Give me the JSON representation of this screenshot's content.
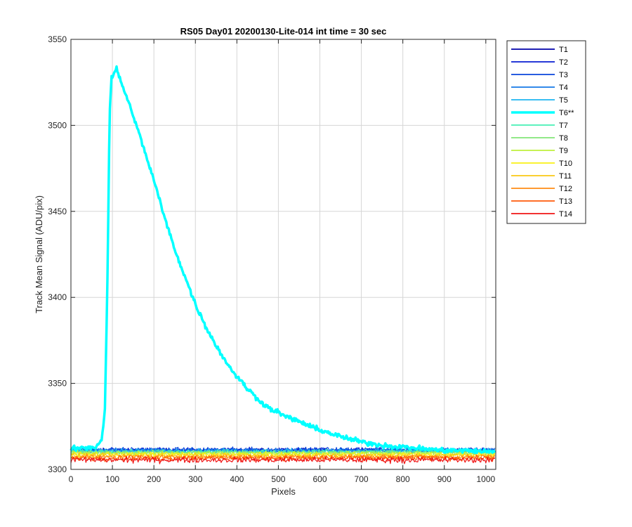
{
  "chart_data": {
    "type": "line",
    "title": "RS05 Day01 20200130-Lite-014 int time = 30 sec",
    "xlabel": "Pixels",
    "ylabel": "Track Mean Signal (ADU/pix)",
    "xlim": [
      0,
      1024
    ],
    "ylim": [
      3300,
      3550
    ],
    "xticks": [
      0,
      100,
      200,
      300,
      400,
      500,
      600,
      700,
      800,
      900,
      1000
    ],
    "yticks": [
      3300,
      3350,
      3400,
      3450,
      3500,
      3550
    ],
    "grid": true,
    "legend_position": "outside-right",
    "series": [
      {
        "name": "T1",
        "color": "#0000AA",
        "baseline": 3311.0,
        "noise": 0.9,
        "highlight": false
      },
      {
        "name": "T2",
        "color": "#0A1ED2",
        "baseline": 3311.3,
        "noise": 0.9,
        "highlight": false
      },
      {
        "name": "T3",
        "color": "#0A46DC",
        "baseline": 3311.5,
        "noise": 0.9,
        "highlight": false
      },
      {
        "name": "T4",
        "color": "#1478E6",
        "baseline": 3311.0,
        "noise": 0.9,
        "highlight": false
      },
      {
        "name": "T5",
        "color": "#1EB4F0",
        "baseline": 3310.8,
        "noise": 0.9,
        "highlight": false
      },
      {
        "name": "T6**",
        "color": "#00FFFF",
        "baseline": 3311.0,
        "noise": 1.0,
        "highlight": true,
        "peak_points": [
          [
            0,
            3312
          ],
          [
            60,
            3313
          ],
          [
            75,
            3318
          ],
          [
            82,
            3335
          ],
          [
            88,
            3410
          ],
          [
            93,
            3505
          ],
          [
            98,
            3528
          ],
          [
            103,
            3529
          ],
          [
            110,
            3533
          ],
          [
            120,
            3526
          ],
          [
            130,
            3519
          ],
          [
            150,
            3506
          ],
          [
            175,
            3487
          ],
          [
            200,
            3468
          ],
          [
            225,
            3447
          ],
          [
            250,
            3428
          ],
          [
            275,
            3412
          ],
          [
            300,
            3396
          ],
          [
            325,
            3383
          ],
          [
            350,
            3372
          ],
          [
            375,
            3362
          ],
          [
            400,
            3354
          ],
          [
            425,
            3347
          ],
          [
            450,
            3341
          ],
          [
            475,
            3336
          ],
          [
            500,
            3333
          ],
          [
            525,
            3330
          ],
          [
            550,
            3328
          ],
          [
            575,
            3325
          ],
          [
            600,
            3323
          ],
          [
            625,
            3321
          ],
          [
            650,
            3319
          ],
          [
            700,
            3316
          ],
          [
            750,
            3314
          ],
          [
            800,
            3313
          ],
          [
            850,
            3312
          ],
          [
            900,
            3311
          ],
          [
            950,
            3311
          ],
          [
            1024,
            3310
          ]
        ]
      },
      {
        "name": "T7",
        "color": "#46F0B4",
        "baseline": 3310.2,
        "noise": 0.9,
        "highlight": false
      },
      {
        "name": "T8",
        "color": "#82E678",
        "baseline": 3309.8,
        "noise": 0.9,
        "highlight": false
      },
      {
        "name": "T9",
        "color": "#BEF03C",
        "baseline": 3309.3,
        "noise": 0.9,
        "highlight": false
      },
      {
        "name": "T10",
        "color": "#FAF014",
        "baseline": 3308.6,
        "noise": 1.0,
        "highlight": false
      },
      {
        "name": "T11",
        "color": "#FAC814",
        "baseline": 3308.0,
        "noise": 1.0,
        "highlight": false
      },
      {
        "name": "T12",
        "color": "#FF8C14",
        "baseline": 3307.2,
        "noise": 1.0,
        "highlight": false
      },
      {
        "name": "T13",
        "color": "#FF5A0A",
        "baseline": 3306.5,
        "noise": 1.1,
        "highlight": false
      },
      {
        "name": "T14",
        "color": "#F01414",
        "baseline": 3305.5,
        "noise": 1.2,
        "highlight": false
      }
    ]
  }
}
